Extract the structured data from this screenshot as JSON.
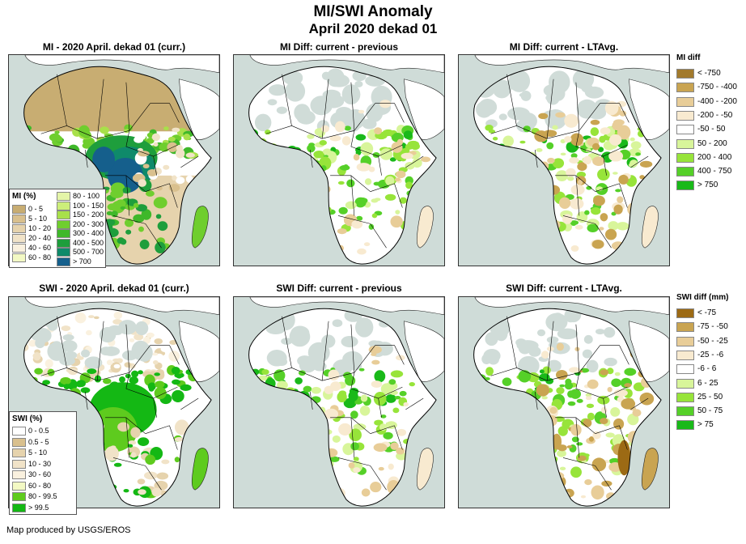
{
  "title": "MI/SWI Anomaly",
  "subtitle": "April 2020 dekad 01",
  "credit": "Map produced by USGS/EROS",
  "colors": {
    "ocean": "#cfdcd8",
    "land": "#ffffff",
    "desert": "#c8ad72",
    "border": "#000000"
  },
  "panels": [
    {
      "title": "MI - 2020 April. dekad 01 (curr.)",
      "variant": "mi_curr"
    },
    {
      "title": "MI Diff: current - previous",
      "variant": "mi_prev"
    },
    {
      "title": "MI Diff: current - LTAvg.",
      "variant": "mi_lta"
    },
    {
      "title": "SWI - 2020 April. dekad 01 (curr.)",
      "variant": "swi_curr"
    },
    {
      "title": "SWI Diff: current - previous",
      "variant": "swi_prev"
    },
    {
      "title": "SWI Diff: current - LTAvg.",
      "variant": "swi_lta"
    }
  ],
  "mi_legend": {
    "title": "MI (%)",
    "col1": [
      {
        "label": "0 - 5",
        "color": "#c8ad72"
      },
      {
        "label": "5 - 10",
        "color": "#d9c08e"
      },
      {
        "label": "10 - 20",
        "color": "#e6d3ad"
      },
      {
        "label": "20 - 40",
        "color": "#f1e3c8"
      },
      {
        "label": "40 - 60",
        "color": "#faf1df"
      },
      {
        "label": "60 - 80",
        "color": "#f3f9c4"
      }
    ],
    "col2": [
      {
        "label": "80 - 100",
        "color": "#e4f5a8"
      },
      {
        "label": "100 - 150",
        "color": "#ccee7a"
      },
      {
        "label": "150 - 200",
        "color": "#a8e04a"
      },
      {
        "label": "200 - 300",
        "color": "#6fce2e"
      },
      {
        "label": "300 - 400",
        "color": "#3fb82a"
      },
      {
        "label": "400 - 500",
        "color": "#1e9e3c"
      },
      {
        "label": "500 - 700",
        "color": "#0f8a6a"
      },
      {
        "label": "> 700",
        "color": "#155f8c"
      }
    ]
  },
  "swi_legend": {
    "title": "SWI (%)",
    "items": [
      {
        "label": "0 - 0.5",
        "color": "#ffffff"
      },
      {
        "label": "0.5 - 5",
        "color": "#d9c08e"
      },
      {
        "label": "5 - 10",
        "color": "#e6d3ad"
      },
      {
        "label": "10 - 30",
        "color": "#f1e3c8"
      },
      {
        "label": "30 - 60",
        "color": "#faf1df"
      },
      {
        "label": "60 - 80",
        "color": "#f3f9c4"
      },
      {
        "label": "80 - 99.5",
        "color": "#5ecb1e"
      },
      {
        "label": "> 99.5",
        "color": "#14b814"
      }
    ]
  },
  "mi_diff_legend": {
    "title": "MI diff",
    "items": [
      {
        "label": "< -750",
        "color": "#a27a2c"
      },
      {
        "label": "-750 - -400",
        "color": "#c9a451"
      },
      {
        "label": "-400 - -200",
        "color": "#e8cd98"
      },
      {
        "label": "-200 - -50",
        "color": "#f8ead0"
      },
      {
        "label": "-50 - 50",
        "color": "#ffffff"
      },
      {
        "label": "50 - 200",
        "color": "#d8f59a"
      },
      {
        "label": "200 - 400",
        "color": "#97e43a"
      },
      {
        "label": "400 - 750",
        "color": "#55d028"
      },
      {
        "label": "> 750",
        "color": "#19b919"
      }
    ]
  },
  "swi_diff_legend": {
    "title": "SWI diff (mm)",
    "items": [
      {
        "label": "< -75",
        "color": "#9c6a14"
      },
      {
        "label": "-75 - -50",
        "color": "#c9a451"
      },
      {
        "label": "-50 - -25",
        "color": "#e8cd98"
      },
      {
        "label": "-25 - -6",
        "color": "#f8ead0"
      },
      {
        "label": "-6 - 6",
        "color": "#ffffff"
      },
      {
        "label": "6 - 25",
        "color": "#d8f59a"
      },
      {
        "label": "25 - 50",
        "color": "#97e43a"
      },
      {
        "label": "50 - 75",
        "color": "#55d028"
      },
      {
        "label": "> 75",
        "color": "#19b919"
      }
    ]
  }
}
